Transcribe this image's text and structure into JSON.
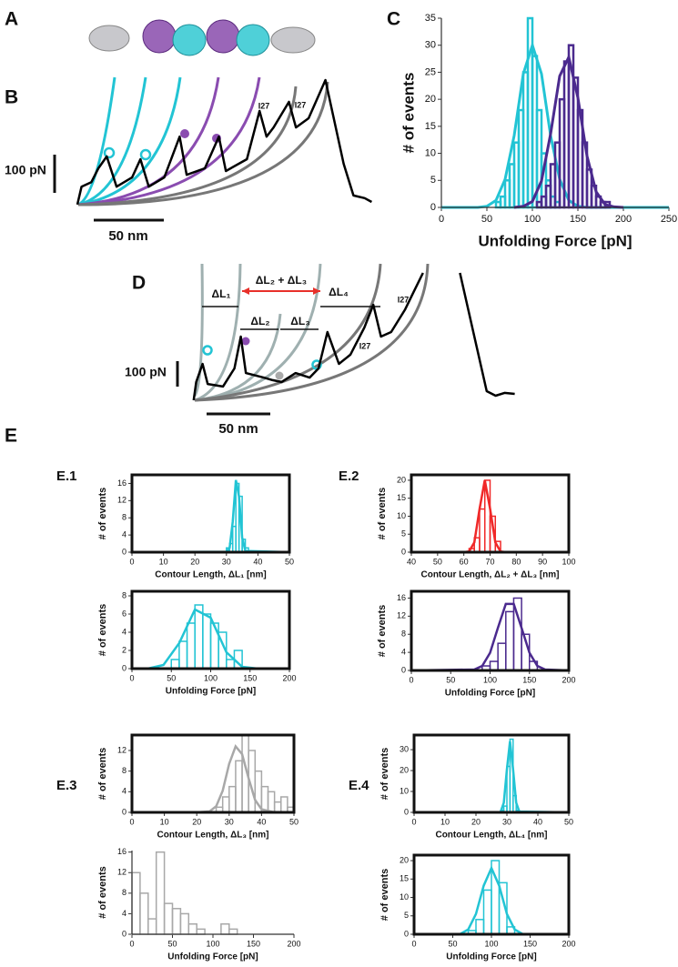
{
  "panel_labels": [
    "A",
    "B",
    "C",
    "D",
    "E",
    "E.1",
    "E.2",
    "E.3",
    "E.4"
  ],
  "chart_data": [
    {
      "type": "line",
      "color": "#000000",
      "x": [
        0,
        3,
        10,
        15,
        21,
        28,
        39,
        45,
        51,
        62,
        73,
        78,
        91,
        101,
        106,
        121,
        130,
        135,
        140,
        151,
        156,
        165,
        177,
        190,
        197,
        205,
        210
      ],
      "values": [
        -7,
        40,
        52,
        88,
        119,
        40,
        64,
        112,
        40,
        64,
        171,
        71,
        88,
        171,
        81,
        112,
        238,
        171,
        195,
        262,
        195,
        219,
        319,
        100,
        17,
        10,
        0
      ],
      "scalebar_y": {
        "value": 100,
        "label": "100 pN"
      },
      "scalebar_x": {
        "value": 50,
        "label": "50 nm"
      },
      "annotations": [
        {
          "text": "I27"
        },
        {
          "text": "I27"
        }
      ]
    },
    {
      "type": "histogram",
      "xlabel": "Unfolding Force [pN]",
      "ylabel": "# of events",
      "frame": false,
      "xlim": [
        0,
        250
      ],
      "xticks": [
        0,
        50,
        100,
        150,
        200,
        250
      ],
      "ylim": [
        0,
        35
      ],
      "yticks": [
        0,
        5,
        10,
        15,
        20,
        25,
        30,
        35
      ],
      "series": [
        {
          "color": "#22c4d4",
          "bins": [
            60,
            65,
            70,
            75,
            80,
            85,
            90,
            95,
            100,
            105,
            110,
            115,
            120,
            125,
            130,
            135
          ],
          "values": [
            1,
            2,
            5,
            8,
            12,
            18,
            25,
            35,
            28,
            18,
            10,
            5,
            2,
            1,
            0
          ],
          "fit_x": [
            0,
            40,
            50,
            60,
            70,
            80,
            90,
            100,
            110,
            120,
            130,
            140,
            150,
            160,
            250
          ],
          "fit_values": [
            0,
            0,
            0.2,
            1.3,
            5.2,
            13.3,
            24.7,
            30,
            24.7,
            13.3,
            5.2,
            1.3,
            0.2,
            0,
            0
          ]
        },
        {
          "color": "#4b2a8e",
          "bins": [
            105,
            110,
            115,
            120,
            125,
            130,
            135,
            140,
            145,
            150,
            155,
            160,
            165,
            170,
            175,
            180,
            185
          ],
          "values": [
            1,
            2,
            4,
            8,
            12,
            20,
            27,
            30,
            24,
            18,
            12,
            7,
            4,
            2,
            1,
            1
          ],
          "fit_x": [
            80,
            90,
            100,
            110,
            120,
            130,
            140,
            150,
            160,
            170,
            180,
            190,
            200
          ],
          "fit_values": [
            0,
            0.2,
            1.1,
            4.9,
            13.6,
            24.3,
            27.8,
            20.3,
            9.5,
            2.9,
            0.5,
            0.1,
            0
          ]
        }
      ]
    },
    {
      "type": "line",
      "color": "#000000",
      "x": [
        2,
        4,
        9,
        13,
        25,
        34,
        39,
        43,
        57,
        64,
        71,
        82,
        93,
        100,
        107,
        116,
        125,
        136,
        143,
        149,
        157,
        168,
        175,
        182,
        null,
        211,
        232,
        239,
        246,
        254
      ],
      "values": [
        -18,
        54,
        125,
        46,
        36,
        107,
        232,
        89,
        71,
        61,
        54,
        89,
        71,
        107,
        250,
        125,
        161,
        268,
        357,
        232,
        250,
        339,
        411,
        482,
        null,
        482,
        18,
        0,
        11,
        7
      ],
      "scalebar_y": {
        "value": 100,
        "label": "100 pN"
      },
      "scalebar_x": {
        "value": 50,
        "label": "50 nm"
      },
      "annotations": [
        {
          "text": "ΔL₁"
        },
        {
          "text": "ΔL₂ + ΔL₃"
        },
        {
          "text": "ΔL₄"
        },
        {
          "text": "ΔL₂"
        },
        {
          "text": "ΔL₃"
        },
        {
          "text": "I27"
        },
        {
          "text": "I27"
        }
      ]
    },
    {
      "type": "histogram",
      "xlabel": "Contour Length, ΔL₁ [nm]",
      "ylabel": "# of events",
      "frame": true,
      "xlim": [
        0,
        50
      ],
      "xticks": [
        0,
        10,
        20,
        30,
        40,
        50
      ],
      "ylim": [
        0,
        18
      ],
      "yticks": [
        0,
        4,
        8,
        12,
        16
      ],
      "series": [
        {
          "color": "#22c4d4",
          "bins": [
            30,
            31,
            32,
            33,
            34,
            35,
            36,
            37
          ],
          "values": [
            1,
            2,
            6,
            16,
            13,
            3,
            1
          ],
          "fit_x": [
            0,
            30,
            31,
            32,
            33,
            34,
            35,
            36,
            50
          ],
          "fit_values": [
            0,
            0.1,
            1,
            7,
            16.8,
            13,
            3.4,
            0.3,
            0
          ]
        }
      ]
    },
    {
      "type": "histogram",
      "xlabel": "Unfolding Force [pN]",
      "ylabel": "# of events",
      "frame": true,
      "xlim": [
        0,
        200
      ],
      "xticks": [
        0,
        50,
        100,
        150,
        200
      ],
      "ylim": [
        0,
        8.5
      ],
      "yticks": [
        0,
        2,
        4,
        6,
        8
      ],
      "series": [
        {
          "color": "#22c4d4",
          "bins": [
            50,
            60,
            70,
            80,
            90,
            100,
            110,
            120,
            130,
            140
          ],
          "values": [
            1,
            3,
            5,
            7,
            6,
            5,
            4,
            1,
            2
          ],
          "fit_x": [
            0,
            20,
            40,
            60,
            80,
            100,
            120,
            140,
            160,
            200
          ],
          "fit_values": [
            0,
            0,
            0.4,
            2.8,
            6.5,
            5.6,
            1.8,
            0.2,
            0,
            0
          ]
        }
      ]
    },
    {
      "type": "histogram",
      "xlabel": "Contour Length, ΔL₂ + ΔL₃ [nm]",
      "ylabel": "# of events",
      "frame": true,
      "xlim": [
        40,
        100
      ],
      "xticks": [
        40,
        50,
        60,
        70,
        80,
        90,
        100
      ],
      "ylim": [
        0,
        21.5
      ],
      "yticks": [
        0,
        5,
        10,
        15,
        20
      ],
      "series": [
        {
          "color": "#f02828",
          "bins": [
            62,
            64,
            66,
            68,
            70,
            72,
            74
          ],
          "values": [
            1,
            4,
            12,
            20,
            10,
            3
          ],
          "fit_x": [
            40,
            60,
            62,
            64,
            66,
            68,
            70,
            72,
            74,
            76,
            100
          ],
          "fit_values": [
            0,
            0,
            0.2,
            2.7,
            12.1,
            20,
            12.1,
            2.7,
            0.2,
            0,
            0
          ]
        }
      ]
    },
    {
      "type": "histogram",
      "xlabel": "Unfolding Force [pN]",
      "ylabel": "# of events",
      "frame": true,
      "xlim": [
        0,
        200
      ],
      "xticks": [
        0,
        50,
        100,
        150,
        200
      ],
      "ylim": [
        0,
        17.5
      ],
      "yticks": [
        0,
        4,
        8,
        12,
        16
      ],
      "series": [
        {
          "color": "#4b2a8e",
          "bins": [
            90,
            100,
            110,
            120,
            130,
            140,
            150,
            160
          ],
          "values": [
            1,
            2,
            6,
            13,
            16,
            8,
            2
          ],
          "fit_x": [
            0,
            80,
            90,
            100,
            110,
            120,
            130,
            140,
            150,
            160,
            170,
            200
          ],
          "fit_values": [
            0,
            0.2,
            1,
            3.9,
            9.4,
            14.7,
            14.7,
            9.4,
            3.9,
            1,
            0.2,
            0
          ]
        }
      ]
    },
    {
      "type": "histogram",
      "xlabel": "Contour Length, ΔL₃ [nm]",
      "ylabel": "# of events",
      "frame": true,
      "xlim": [
        0,
        50
      ],
      "xticks": [
        0,
        10,
        20,
        30,
        40,
        50
      ],
      "ylim": [
        0,
        15
      ],
      "yticks": [
        0,
        4,
        8,
        12
      ],
      "series": [
        {
          "color": "#a8a8a8",
          "bins": [
            26,
            28,
            30,
            32,
            34,
            36,
            38,
            40,
            42,
            44,
            46,
            48,
            50
          ],
          "values": [
            1,
            3,
            5,
            10,
            15,
            12,
            8,
            5,
            4,
            2,
            3,
            1
          ],
          "fit_x": [
            0,
            20,
            24,
            26,
            28,
            30,
            32,
            34,
            36,
            38,
            40,
            44,
            50
          ],
          "fit_values": [
            0,
            0,
            0.2,
            1.2,
            4.2,
            9.4,
            12.8,
            11.3,
            6.6,
            2.4,
            0.6,
            0,
            0
          ]
        }
      ]
    },
    {
      "type": "histogram",
      "xlabel": "Unfolding Force [pN]",
      "ylabel": "# of events",
      "frame": false,
      "xlim": [
        0,
        200
      ],
      "xticks": [
        0,
        50,
        100,
        150,
        200
      ],
      "ylim": [
        0,
        16.3
      ],
      "yticks": [
        0,
        4,
        8,
        12,
        16
      ],
      "series": [
        {
          "color": "#a8a8a8",
          "bins": [
            0,
            10,
            20,
            30,
            40,
            50,
            60,
            70,
            80,
            90,
            100,
            110,
            120,
            130
          ],
          "values": [
            12,
            8,
            3,
            16,
            6,
            5,
            4,
            2,
            1,
            0,
            0,
            2,
            1
          ]
        }
      ]
    },
    {
      "type": "histogram",
      "xlabel": "Contour Length, ΔL₄ [nm]",
      "ylabel": "# of events",
      "frame": true,
      "xlim": [
        0,
        50
      ],
      "xticks": [
        0,
        10,
        20,
        30,
        40,
        50
      ],
      "ylim": [
        0,
        37
      ],
      "yticks": [
        0,
        10,
        20,
        30
      ],
      "series": [
        {
          "color": "#22c4d4",
          "bins": [
            28,
            29,
            30,
            31,
            32,
            33,
            34
          ],
          "values": [
            1,
            3,
            22,
            35,
            8,
            1
          ],
          "fit_x": [
            0,
            27,
            28,
            29,
            30,
            31,
            32,
            33,
            34,
            50
          ],
          "fit_values": [
            0,
            0,
            0.4,
            4.6,
            20.6,
            34,
            20.6,
            4.6,
            0.4,
            0
          ]
        }
      ]
    },
    {
      "type": "histogram",
      "xlabel": "Unfolding Force [pN]",
      "ylabel": "# of events",
      "frame": true,
      "xlim": [
        0,
        200
      ],
      "xticks": [
        0,
        50,
        100,
        150,
        200
      ],
      "ylim": [
        0,
        21.5
      ],
      "yticks": [
        0,
        5,
        10,
        15,
        20
      ],
      "series": [
        {
          "color": "#22c4d4",
          "bins": [
            70,
            80,
            90,
            100,
            110,
            120,
            130
          ],
          "values": [
            1,
            4,
            12,
            20,
            14,
            2
          ],
          "fit_x": [
            0,
            60,
            70,
            80,
            90,
            100,
            110,
            120,
            130,
            140,
            200
          ],
          "fit_values": [
            0,
            0.1,
            1.3,
            5.5,
            13.2,
            18,
            13.2,
            5.5,
            1.3,
            0.1,
            0
          ]
        }
      ]
    }
  ]
}
